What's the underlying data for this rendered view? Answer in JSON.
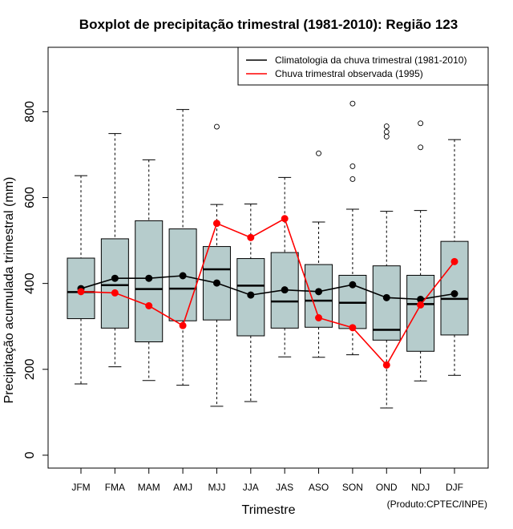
{
  "chart_data": {
    "type": "boxplot",
    "title": "Boxplot de precipitação trimestral (1981-2010): Região 123",
    "xlabel": "Trimestre",
    "ylabel": "Precipitação acumulada trimestral (mm)",
    "ylim": [
      -30,
      950
    ],
    "yticks": [
      0,
      200,
      400,
      600,
      800
    ],
    "credit": "(Produto:CPTEC/INPE)",
    "categories": [
      "JFM",
      "FMA",
      "MAM",
      "AMJ",
      "MJJ",
      "JJA",
      "JAS",
      "ASO",
      "SON",
      "OND",
      "NDJ",
      "DJF"
    ],
    "boxes": [
      {
        "label": "JFM",
        "whisker_low": 166,
        "q1": 318,
        "median": 380,
        "q3": 459,
        "whisker_high": 651,
        "outliers": []
      },
      {
        "label": "FMA",
        "whisker_low": 206,
        "q1": 296,
        "median": 396,
        "q3": 504,
        "whisker_high": 749,
        "outliers": []
      },
      {
        "label": "MAM",
        "whisker_low": 174,
        "q1": 264,
        "median": 387,
        "q3": 546,
        "whisker_high": 688,
        "outliers": []
      },
      {
        "label": "AMJ",
        "whisker_low": 163,
        "q1": 313,
        "median": 388,
        "q3": 527,
        "whisker_high": 805,
        "outliers": []
      },
      {
        "label": "MJJ",
        "whisker_low": 114,
        "q1": 315,
        "median": 433,
        "q3": 486,
        "whisker_high": 584,
        "outliers": [
          765
        ]
      },
      {
        "label": "JJA",
        "whisker_low": 125,
        "q1": 278,
        "median": 395,
        "q3": 458,
        "whisker_high": 585,
        "outliers": []
      },
      {
        "label": "JAS",
        "whisker_low": 229,
        "q1": 296,
        "median": 358,
        "q3": 472,
        "whisker_high": 647,
        "outliers": []
      },
      {
        "label": "ASO",
        "whisker_low": 228,
        "q1": 298,
        "median": 360,
        "q3": 444,
        "whisker_high": 543,
        "outliers": [
          703
        ]
      },
      {
        "label": "SON",
        "whisker_low": 234,
        "q1": 295,
        "median": 355,
        "q3": 419,
        "whisker_high": 573,
        "outliers": [
          643,
          673,
          819
        ]
      },
      {
        "label": "OND",
        "whisker_low": 110,
        "q1": 268,
        "median": 292,
        "q3": 441,
        "whisker_high": 568,
        "outliers": [
          742,
          753,
          766
        ]
      },
      {
        "label": "NDJ",
        "whisker_low": 173,
        "q1": 242,
        "median": 352,
        "q3": 419,
        "whisker_high": 570,
        "outliers": [
          717,
          773
        ]
      },
      {
        "label": "DJF",
        "whisker_low": 186,
        "q1": 280,
        "median": 364,
        "q3": 498,
        "whisker_high": 735,
        "outliers": []
      }
    ],
    "series": [
      {
        "name": "Climatologia da chuva trimestral (1981-2010)",
        "color": "#000000",
        "values": [
          388,
          412,
          412,
          418,
          401,
          373,
          385,
          381,
          397,
          367,
          363,
          376
        ]
      },
      {
        "name": "Chuva trimestral observada (1995)",
        "color": "#ff0000",
        "values": [
          381,
          378,
          348,
          302,
          540,
          507,
          551,
          320,
          297,
          210,
          350,
          451
        ]
      }
    ],
    "legend_position": "top-right",
    "box_color": "#b6cccc"
  }
}
